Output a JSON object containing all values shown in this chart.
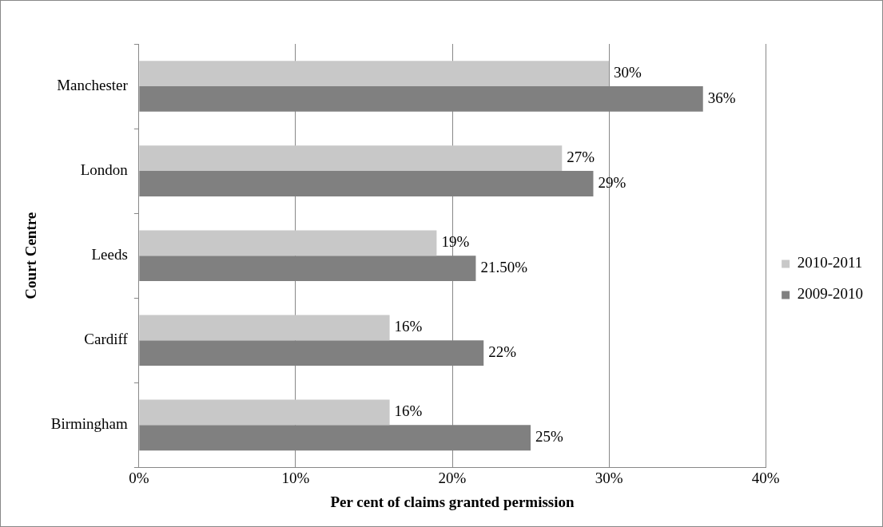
{
  "chart_data": {
    "type": "bar",
    "orientation": "horizontal",
    "xlabel": "Per cent of claims granted permission",
    "ylabel": "Court Centre",
    "categories": [
      "Manchester",
      "London",
      "Leeds",
      "Cardiff",
      "Birmingham"
    ],
    "series": [
      {
        "name": "2010-2011",
        "color": "#c8c8c8",
        "values": [
          30,
          27,
          19,
          16,
          16
        ],
        "value_labels": [
          "30%",
          "27%",
          "19%",
          "16%",
          "16%"
        ]
      },
      {
        "name": "2009-2010",
        "color": "#808080",
        "values": [
          36,
          29,
          21.5,
          22,
          25
        ],
        "value_labels": [
          "36%",
          "29%",
          "21.50%",
          "22%",
          "25%"
        ]
      }
    ],
    "xlim": [
      0,
      40
    ],
    "xticks": [
      {
        "value": 0,
        "label": "0%"
      },
      {
        "value": 10,
        "label": "10%"
      },
      {
        "value": 20,
        "label": "20%"
      },
      {
        "value": 30,
        "label": "30%"
      },
      {
        "value": 40,
        "label": "40%"
      }
    ],
    "grid": "x",
    "legend": "right"
  }
}
